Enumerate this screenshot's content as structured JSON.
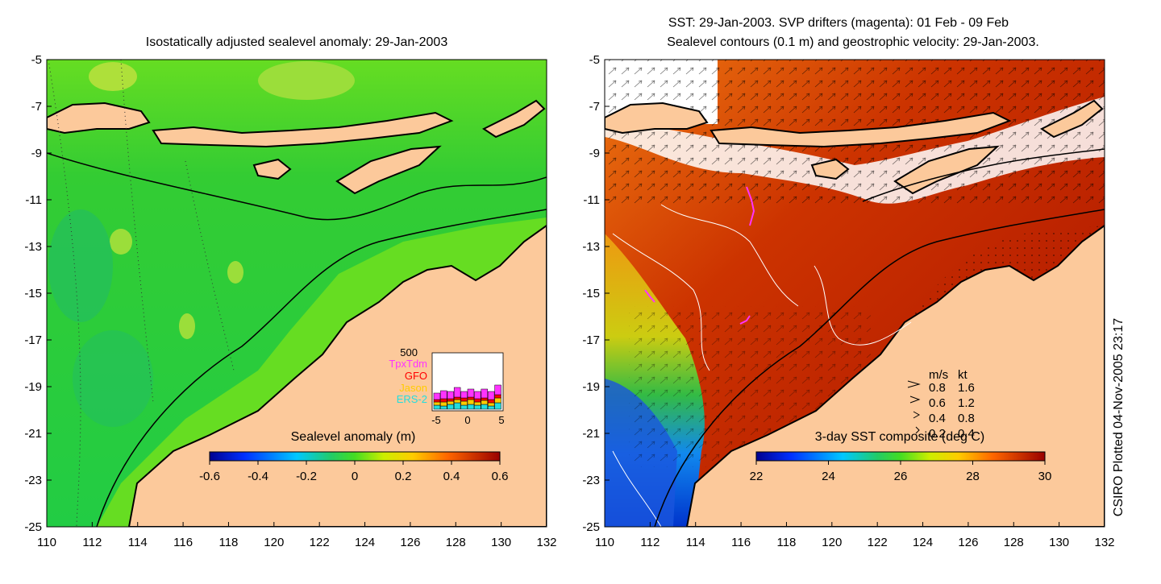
{
  "left_panel": {
    "title": "Isostatically adjusted sealevel anomaly: 29-Jan-2003",
    "colorbar": {
      "label": "Sealevel anomaly (m)",
      "ticks": [
        "-0.6",
        "-0.4",
        "-0.2",
        "0",
        "0.2",
        "0.4",
        "0.6"
      ],
      "range": [
        -0.6,
        0.6
      ]
    },
    "inset": {
      "ymax_label": "500",
      "legend": [
        "TpxTdm",
        "GFO",
        "Jason",
        "ERS-2"
      ],
      "legend_colors": [
        "#ff33ff",
        "#ff0000",
        "#ffcc00",
        "#22dddd"
      ],
      "xticks": [
        "-5",
        "0",
        "5"
      ]
    }
  },
  "right_panel": {
    "title_line1": "SST: 29-Jan-2003. SVP drifters (magenta): 01 Feb - 09 Feb",
    "title_line2": "Sealevel contours (0.1 m) and geostrophic velocity: 29-Jan-2003.",
    "colorbar": {
      "label": "3-day SST composite (deg C)",
      "ticks": [
        "22",
        "24",
        "26",
        "28",
        "30"
      ],
      "range": [
        22,
        30
      ]
    },
    "velocity_legend": {
      "header_ms": "m/s",
      "header_kt": "kt",
      "rows": [
        {
          "ms": "0.8",
          "kt": "1.6"
        },
        {
          "ms": "0.6",
          "kt": "1.2"
        },
        {
          "ms": "0.4",
          "kt": "0.8"
        },
        {
          "ms": "0.2",
          "kt": "0.4"
        }
      ]
    }
  },
  "axes": {
    "xticks": [
      "110",
      "112",
      "114",
      "116",
      "118",
      "120",
      "122",
      "124",
      "126",
      "128",
      "130",
      "132"
    ],
    "yticks": [
      "-5",
      "-7",
      "-9",
      "-11",
      "-13",
      "-15",
      "-17",
      "-19",
      "-21",
      "-23",
      "-25"
    ],
    "lon_range": [
      110,
      132
    ],
    "lat_range": [
      -25,
      -5
    ]
  },
  "side_credit": "CSIRO Plotted 04-Nov-2005 23:17",
  "colors": {
    "land": "#fcc99b",
    "ocean_anomaly": "#22cc22",
    "sst_warm": "#b81500"
  }
}
